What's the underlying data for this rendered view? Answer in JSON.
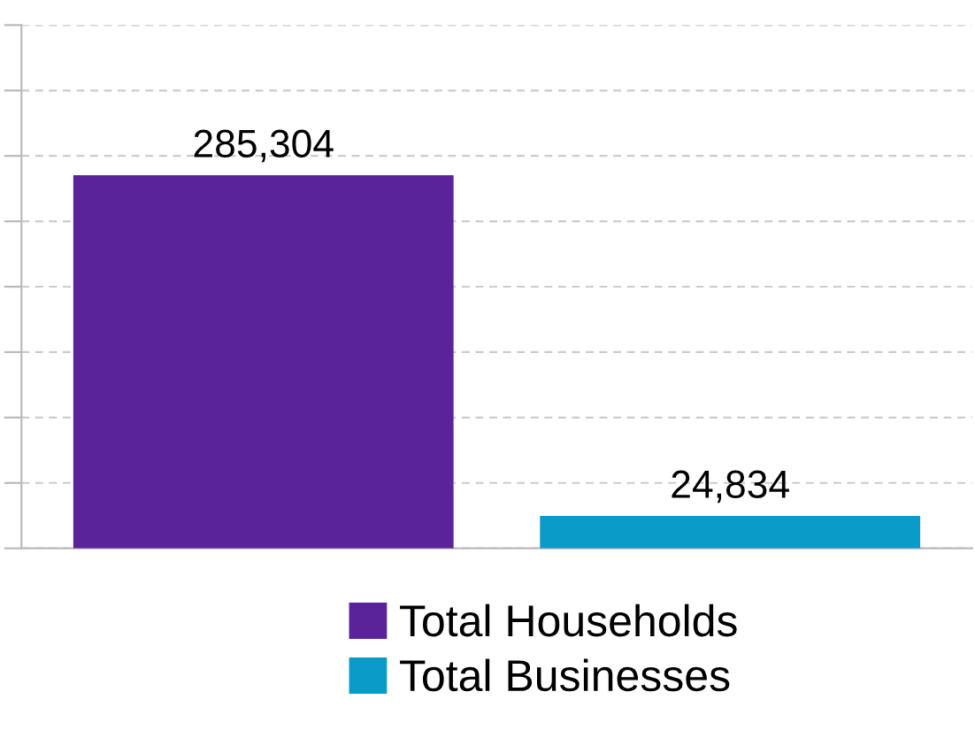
{
  "chart_data": {
    "type": "bar",
    "categories": [
      null
    ],
    "series": [
      {
        "name": "Total Households",
        "color": "#5b2399",
        "values": [
          285304
        ],
        "value_labels": [
          "285,304"
        ]
      },
      {
        "name": "Total Businesses",
        "color": "#0a9bc8",
        "values": [
          24834
        ],
        "value_labels": [
          "24,834"
        ]
      }
    ],
    "ylim": [
      0,
      400000
    ],
    "yticks": [
      {
        "value": 0,
        "label": null
      },
      {
        "value": 50000,
        "label": null
      },
      {
        "value": 100000,
        "label": null
      },
      {
        "value": 150000,
        "label": null
      },
      {
        "value": 200000,
        "label": null
      },
      {
        "value": 250000,
        "label": null
      },
      {
        "value": 300000,
        "label": null
      },
      {
        "value": 350000,
        "label": null
      },
      {
        "value": 400000,
        "label": null
      }
    ],
    "grid": "y",
    "legend": "bottom"
  }
}
